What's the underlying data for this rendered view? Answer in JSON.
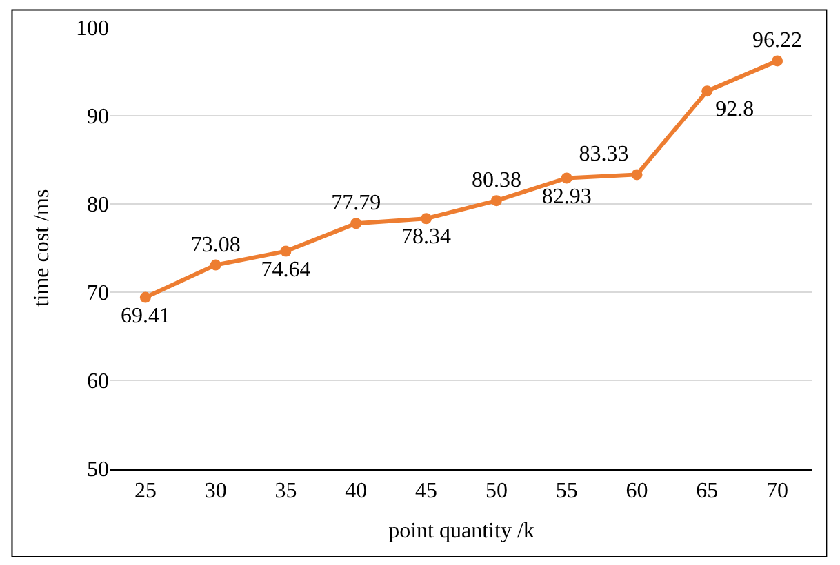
{
  "chart_data": {
    "type": "line",
    "xlabel": "point quantity /k",
    "ylabel": "time cost /ms",
    "categories": [
      "25",
      "30",
      "35",
      "40",
      "45",
      "50",
      "55",
      "60",
      "65",
      "70"
    ],
    "series": [
      {
        "color": "#ed7d31",
        "values": [
          69.41,
          73.08,
          74.64,
          77.79,
          78.34,
          80.38,
          82.93,
          83.33,
          92.8,
          96.22
        ]
      }
    ],
    "ylim": [
      50,
      100
    ],
    "yticks": [
      50,
      60,
      70,
      80,
      90,
      100
    ],
    "grid": "y",
    "marker": "circle",
    "line_style": "solid",
    "data_labels": true
  }
}
